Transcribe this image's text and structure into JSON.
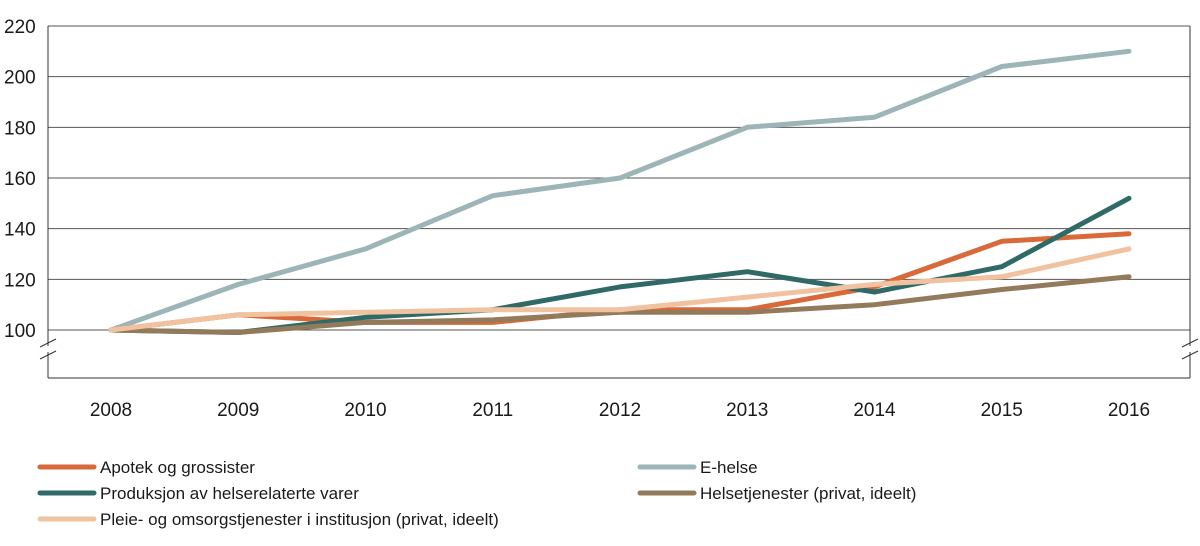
{
  "chart_data": {
    "type": "line",
    "title": "",
    "xlabel": "",
    "ylabel": "",
    "x": [
      "2008",
      "2009",
      "2010",
      "2011",
      "2012",
      "2013",
      "2014",
      "2015",
      "2016"
    ],
    "ylim": [
      100,
      220
    ],
    "y_ticks": [
      "220",
      "200",
      "180",
      "160",
      "140",
      "120",
      "100"
    ],
    "grid": true,
    "axis_break": true,
    "legend_position": "bottom",
    "series": [
      {
        "name": "Apotek og grossister",
        "color": "#d86a3a",
        "values": [
          100,
          106,
          103,
          103,
          108,
          108,
          117,
          135,
          138
        ]
      },
      {
        "name": "E-helse",
        "color": "#9db5b6",
        "values": [
          100,
          118,
          132,
          153,
          160,
          180,
          184,
          204,
          210
        ]
      },
      {
        "name": "Produksjon av helserelaterte varer",
        "color": "#2f6a67",
        "values": [
          100,
          99,
          105,
          108,
          117,
          123,
          115,
          125,
          152
        ]
      },
      {
        "name": "Helsetjenester (privat, ideelt)",
        "color": "#927a5a",
        "values": [
          100,
          99,
          103,
          104,
          107,
          107,
          110,
          116,
          121
        ]
      },
      {
        "name": "Pleie- og omsorgstjenester i institusjon (privat, ideelt)",
        "color": "#f1c2a0",
        "values": [
          100,
          106,
          107,
          108,
          108,
          113,
          118,
          121,
          132
        ]
      }
    ]
  }
}
